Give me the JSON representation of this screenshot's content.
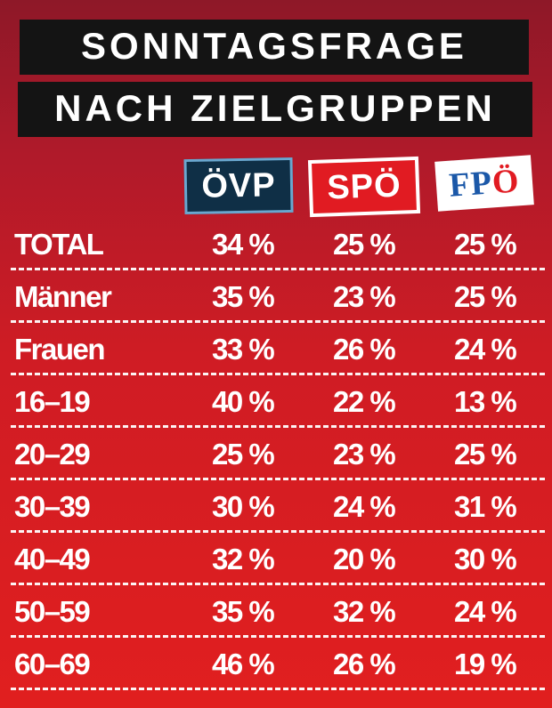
{
  "title": [
    "SONNTAGSFRAGE",
    "NACH ZIELGRUPPEN"
  ],
  "logos": {
    "oevp": "ÖVP",
    "spoe": "SPÖ",
    "fpoe_f": "FP",
    "fpoe_o": "Ö"
  },
  "colors": {
    "title_bg": "#141414",
    "oevp_bg": "#0f2f46",
    "spoe_bg": "#e11b22",
    "fpoe_text": "#1b58a8",
    "background": "#d61e22"
  },
  "chart_data": {
    "type": "table",
    "columns": [
      "ÖVP",
      "SPÖ",
      "FPÖ"
    ],
    "unit": "%",
    "rows": [
      {
        "label": "TOTAL",
        "values": [
          "34 %",
          "25 %",
          "25 %"
        ]
      },
      {
        "label": "Männer",
        "values": [
          "35 %",
          "23 %",
          "25 %"
        ]
      },
      {
        "label": "Frauen",
        "values": [
          "33 %",
          "26 %",
          "24 %"
        ]
      },
      {
        "label": "16–19",
        "values": [
          "40 %",
          "22 %",
          "13 %"
        ]
      },
      {
        "label": "20–29",
        "values": [
          "25 %",
          "23 %",
          "25 %"
        ]
      },
      {
        "label": "30–39",
        "values": [
          "30 %",
          "24 %",
          "31 %"
        ]
      },
      {
        "label": "40–49",
        "values": [
          "32 %",
          "20 %",
          "30 %"
        ]
      },
      {
        "label": "50–59",
        "values": [
          "35 %",
          "32 %",
          "24 %"
        ]
      },
      {
        "label": "60–69",
        "values": [
          "46 %",
          "26 %",
          "19 %"
        ]
      }
    ]
  }
}
